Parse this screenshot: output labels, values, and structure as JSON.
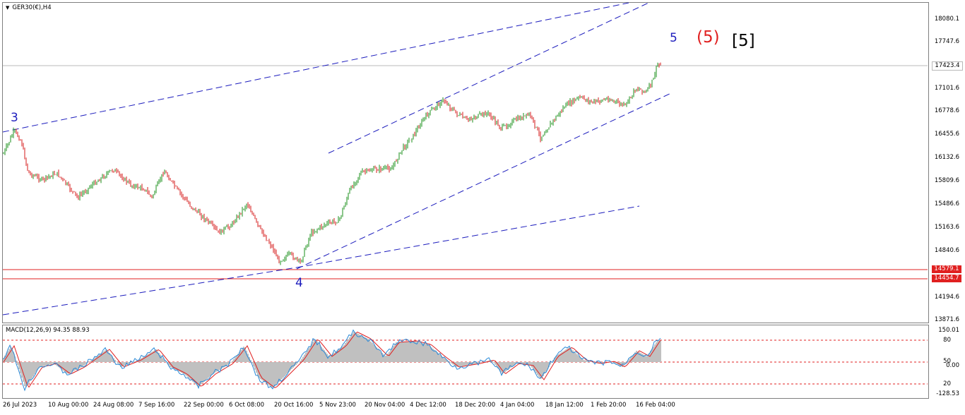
{
  "header": {
    "symbol_label": "GER30(€),H4",
    "menu_arrow": "▼"
  },
  "macd": {
    "label": "MACD(12,26,9) 94.35 88.93",
    "scale": [
      "150.01",
      "80",
      "50",
      "0.00",
      "20",
      "-128.53"
    ]
  },
  "price_axis": [
    "18080.1",
    "17747.6",
    "17101.6",
    "16778.6",
    "16455.6",
    "16132.6",
    "15809.6",
    "15486.6",
    "15163.6",
    "14840.6",
    "14194.6",
    "13871.6"
  ],
  "price_tags": {
    "current": "17423.4",
    "support_high": "14579.1",
    "support_low": "14454.7"
  },
  "time_axis": [
    "26 Jul 2023",
    "10 Aug 00:00",
    "24 Aug 08:00",
    "7 Sep 16:00",
    "22 Sep 00:00",
    "6 Oct 08:00",
    "20 Oct 16:00",
    "5 Nov 23:00",
    "20 Nov 04:00",
    "4 Dec 12:00",
    "18 Dec 20:00",
    "4 Jan 04:00",
    "18 Jan 12:00",
    "1 Feb 20:00",
    "16 Feb 04:00"
  ],
  "wave_labels": {
    "w3": "3",
    "w4": "4",
    "w5": "5",
    "w5_red": "(5)",
    "w5_black": "[5]"
  },
  "colors": {
    "bull_candle": "#1a8f1a",
    "bear_candle": "#d41a1a",
    "trend_line": "#1c1cbd",
    "support_line": "#e02020",
    "macd_signal": "#e02020",
    "macd_main": "#2a8ad8",
    "histogram": "#c0c0c0"
  }
}
